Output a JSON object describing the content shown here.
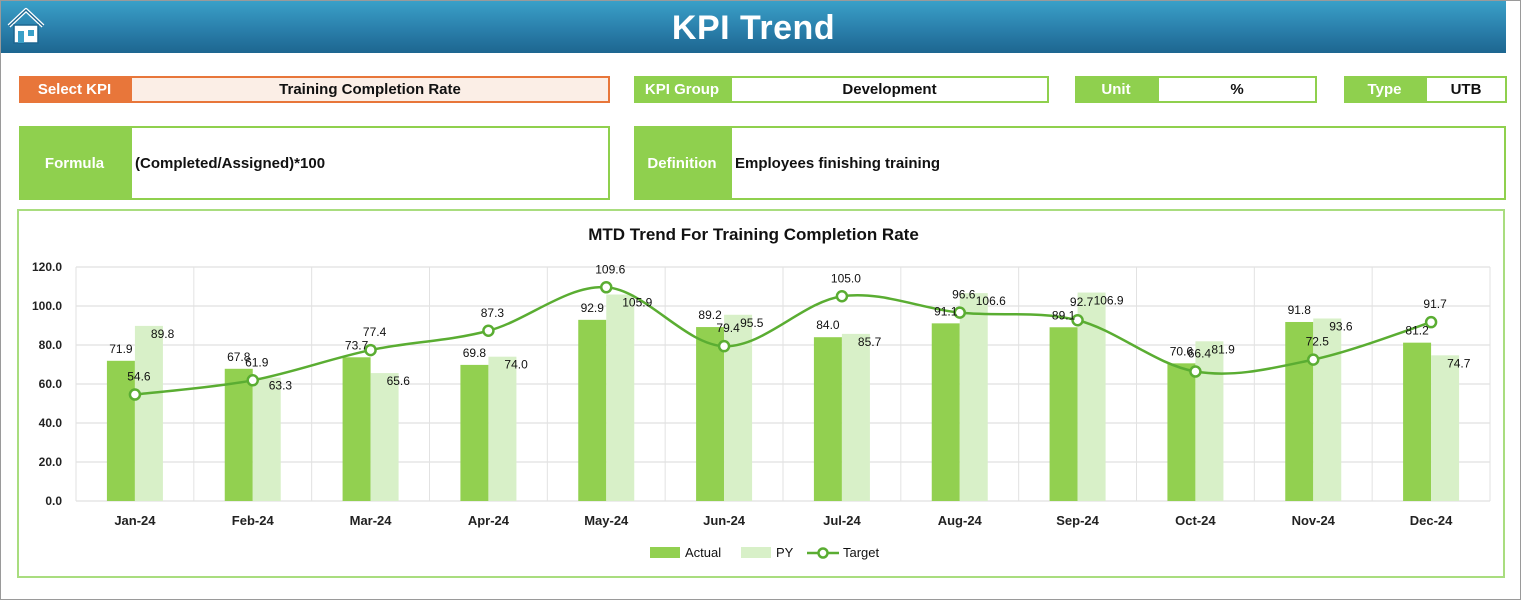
{
  "header": {
    "title": "KPI Trend",
    "home_icon": "home-icon"
  },
  "colors": {
    "header": "#2a7fab",
    "green": "#8fd04e",
    "orange": "#e8763a",
    "actual": "#92d050",
    "py": "#d8f0c8",
    "target": "#5aad32"
  },
  "fields": {
    "select_kpi": {
      "label": "Select KPI",
      "value": "Training Completion Rate"
    },
    "kpi_group": {
      "label": "KPI Group",
      "value": "Development"
    },
    "unit": {
      "label": "Unit",
      "value": "%"
    },
    "type": {
      "label": "Type",
      "value": "UTB"
    },
    "formula": {
      "label": "Formula",
      "value": "(Completed/Assigned)*100"
    },
    "definition": {
      "label": "Definition",
      "value": "Employees finishing training"
    }
  },
  "chart_data": {
    "type": "bar",
    "title": "MTD Trend For Training Completion Rate",
    "categories": [
      "Jan-24",
      "Feb-24",
      "Mar-24",
      "Apr-24",
      "May-24",
      "Jun-24",
      "Jul-24",
      "Aug-24",
      "Sep-24",
      "Oct-24",
      "Nov-24",
      "Dec-24"
    ],
    "series": [
      {
        "name": "Actual",
        "kind": "bar",
        "values": [
          71.9,
          67.8,
          73.7,
          69.8,
          92.9,
          89.2,
          84.0,
          91.1,
          89.1,
          70.6,
          91.8,
          81.2
        ]
      },
      {
        "name": "PY",
        "kind": "bar",
        "values": [
          89.8,
          63.3,
          65.6,
          74.0,
          105.9,
          95.5,
          85.7,
          106.6,
          106.9,
          81.9,
          93.6,
          74.7
        ]
      },
      {
        "name": "Target",
        "kind": "line",
        "values": [
          54.6,
          61.9,
          77.4,
          87.3,
          109.6,
          79.4,
          105.0,
          96.6,
          92.7,
          66.4,
          72.5,
          91.7
        ]
      }
    ],
    "yticks": [
      "0.0",
      "20.0",
      "40.0",
      "60.0",
      "80.0",
      "100.0",
      "120.0"
    ],
    "ylim": [
      0,
      120
    ],
    "grid": true,
    "legend": "bottom"
  }
}
